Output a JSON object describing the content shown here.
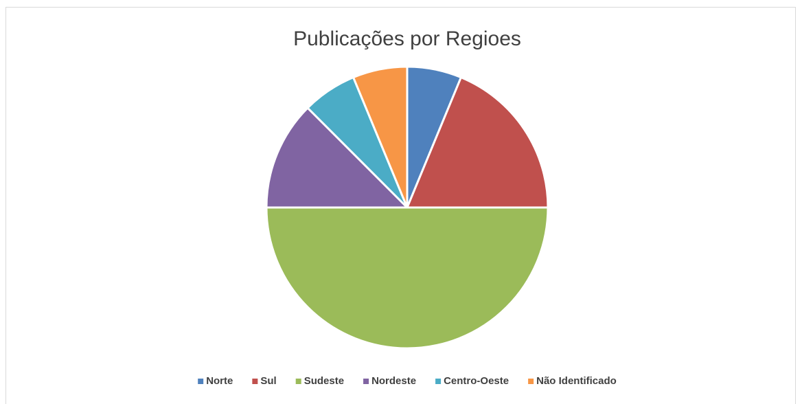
{
  "chart_data": {
    "type": "pie",
    "title": "Publicações por Regioes",
    "categories": [
      "Norte",
      "Sul",
      "Sudeste",
      "Nordeste",
      "Centro-Oeste",
      "Não Identificado"
    ],
    "values": [
      6.25,
      18.75,
      50,
      12.5,
      6.25,
      6.25
    ],
    "colors": [
      "#4f81bd",
      "#c0504d",
      "#9bbb59",
      "#8064a2",
      "#4bacc6",
      "#f79646"
    ],
    "legend": "bottom"
  }
}
